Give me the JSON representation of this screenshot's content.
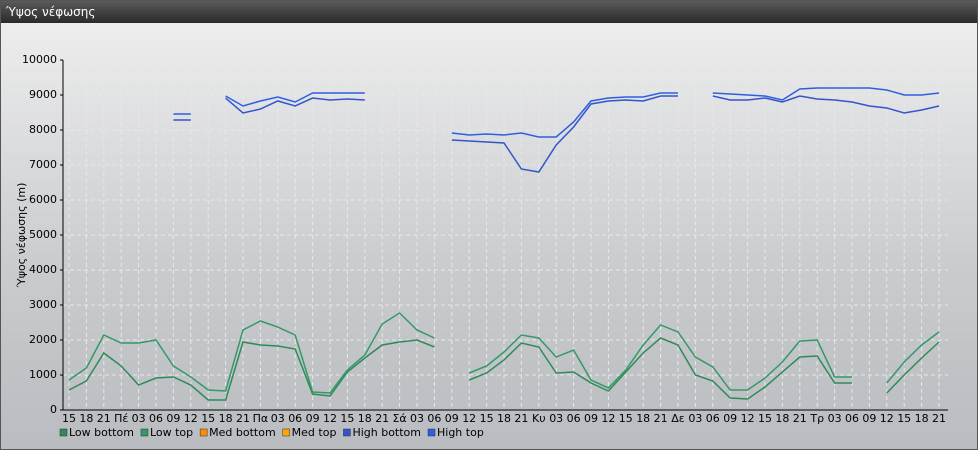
{
  "chart_data": {
    "type": "line",
    "title": "Ύψος νέφωσης",
    "y_label": "Ύψος νέφωσης (m)",
    "categories": [
      "15",
      "18",
      "21",
      "Πέ",
      "03",
      "06",
      "09",
      "12",
      "15",
      "18",
      "21",
      "Πα",
      "03",
      "06",
      "09",
      "12",
      "15",
      "18",
      "21",
      "Σά",
      "03",
      "06",
      "09",
      "12",
      "15",
      "18",
      "21",
      "Κυ",
      "03",
      "06",
      "09",
      "12",
      "15",
      "18",
      "21",
      "Δε",
      "03",
      "06",
      "09",
      "12",
      "15",
      "18",
      "21",
      "Τρ",
      "03",
      "06",
      "09",
      "12",
      "15",
      "18",
      "21"
    ],
    "ylim": [
      0,
      10000
    ],
    "yticks": [
      0,
      1000,
      2000,
      3000,
      4000,
      5000,
      6000,
      7000,
      8000,
      9000,
      10000
    ],
    "grid": true,
    "series": [
      {
        "name": "Low bottom",
        "color": "#2e8b57",
        "values": [
          571,
          829,
          1629,
          1257,
          714,
          914,
          943,
          714,
          286,
          286,
          1943,
          1857,
          1829,
          1743,
          457,
          400,
          1086,
          1486,
          1857,
          1943,
          2000,
          1800,
          null,
          857,
          1057,
          1429,
          1914,
          1800,
          1057,
          1086,
          771,
          543,
          1086,
          1629,
          2057,
          1857,
          1000,
          829,
          343,
          314,
          657,
          1086,
          1514,
          1543,
          771,
          771,
          null,
          486,
          1000,
          1486,
          1943
        ]
      },
      {
        "name": "Low top",
        "color": "#339966",
        "values": [
          857,
          1200,
          2143,
          1914,
          1914,
          2000,
          1257,
          943,
          571,
          543,
          2286,
          2543,
          2371,
          2143,
          514,
          486,
          1143,
          1571,
          2457,
          2771,
          2286,
          2057,
          null,
          1057,
          1257,
          1657,
          2143,
          2057,
          1514,
          1714,
          857,
          629,
          1143,
          1857,
          2429,
          2229,
          1514,
          1229,
          571,
          571,
          914,
          1371,
          1971,
          2000,
          943,
          943,
          null,
          771,
          1371,
          1857,
          2229
        ]
      },
      {
        "name": "Med bottom",
        "color": "#ff8c00",
        "values": [
          null,
          null,
          null,
          null,
          null,
          null,
          null,
          null,
          null,
          null,
          null,
          null,
          null,
          null,
          null,
          null,
          null,
          null,
          null,
          null,
          null,
          null,
          null,
          null,
          null,
          null,
          null,
          null,
          null,
          null,
          null,
          null,
          null,
          null,
          null,
          null,
          null,
          null,
          null,
          null,
          null,
          null,
          null,
          null,
          null,
          null,
          null,
          null,
          null,
          null,
          null
        ]
      },
      {
        "name": "Med top",
        "color": "#ffa500",
        "values": [
          null,
          null,
          null,
          null,
          null,
          null,
          null,
          null,
          null,
          null,
          null,
          null,
          null,
          null,
          null,
          null,
          null,
          null,
          null,
          null,
          null,
          null,
          null,
          null,
          null,
          null,
          null,
          null,
          null,
          null,
          null,
          null,
          null,
          null,
          null,
          null,
          null,
          null,
          null,
          null,
          null,
          null,
          null,
          null,
          null,
          null,
          null,
          null,
          null,
          null,
          null
        ]
      },
      {
        "name": "High bottom",
        "color": "#3355cc",
        "values": [
          null,
          null,
          null,
          null,
          null,
          null,
          8286,
          8286,
          null,
          8914,
          8486,
          8600,
          8829,
          8686,
          8914,
          8857,
          8886,
          8857,
          null,
          null,
          null,
          null,
          7714,
          7686,
          7657,
          7629,
          6886,
          6800,
          7571,
          8086,
          8743,
          8829,
          8857,
          8829,
          8971,
          8971,
          null,
          8971,
          8857,
          8857,
          8914,
          8800,
          8971,
          8886,
          8857,
          8800,
          8686,
          8629,
          8486,
          8571,
          8686
        ]
      },
      {
        "name": "High top",
        "color": "#2f5fe0",
        "values": [
          null,
          null,
          null,
          null,
          null,
          null,
          8457,
          8457,
          null,
          8971,
          8686,
          8829,
          8943,
          8800,
          9057,
          9057,
          9057,
          9057,
          null,
          null,
          null,
          null,
          7914,
          7857,
          7886,
          7857,
          7914,
          7800,
          7800,
          8229,
          8829,
          8914,
          8943,
          8943,
          9057,
          9057,
          null,
          9057,
          9029,
          9000,
          8971,
          8857,
          9171,
          9200,
          9200,
          9200,
          9200,
          9143,
          9000,
          9000,
          9057
        ]
      }
    ]
  }
}
